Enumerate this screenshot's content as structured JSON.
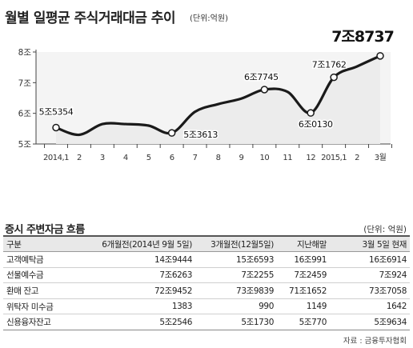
{
  "chart": {
    "title": "월별 일평균 주식거래대금 추이",
    "unit": "(단위:억원)"
  },
  "chart_data": {
    "type": "area",
    "title": "월별 일평균 주식거래대금 추이",
    "unit": "(단위:억원)",
    "x": [
      "2014,1",
      "2",
      "3",
      "4",
      "5",
      "6",
      "7",
      "8",
      "9",
      "10",
      "11",
      "12",
      "2015,1",
      "2",
      "3월"
    ],
    "values": [
      55354,
      53000,
      56500,
      56500,
      56000,
      53613,
      60500,
      63000,
      64800,
      67745,
      67000,
      60130,
      71762,
      75300,
      78737
    ],
    "yticks": [
      "5조",
      "6조",
      "7조",
      "8조"
    ],
    "ylim": [
      50000,
      80000
    ],
    "grid": false,
    "line_color": "#1a1a1a",
    "area_color": "#ececec",
    "annotations": [
      {
        "index": 0,
        "text": "5조5354"
      },
      {
        "index": 5,
        "text": "5조3613"
      },
      {
        "index": 9,
        "text": "6조7745"
      },
      {
        "index": 11,
        "text": "6조0130"
      },
      {
        "index": 12,
        "text": "7조1762"
      },
      {
        "index": 14,
        "text": "7조8737"
      }
    ]
  },
  "table": {
    "title": "증시 주변자금 흐름",
    "unit": "(단위: 억원)",
    "headers": [
      "구분",
      "6개월전(2014년 9월 5일)",
      "3개월전(12월5일)",
      "지난해말",
      "3월 5일 현재"
    ],
    "rows": [
      [
        "고객예탁금",
        "14조9444",
        "15조6593",
        "16조991",
        "16조6914"
      ],
      [
        "선물예수금",
        "7조6263",
        "7조2255",
        "7조2459",
        "7조924"
      ],
      [
        "환매 잔고",
        "72조9452",
        "73조9839",
        "71조1652",
        "73조7058"
      ],
      [
        "위탁자 미수금",
        "1383",
        "990",
        "1149",
        "1642"
      ],
      [
        "신용융자잔고",
        "5조2546",
        "5조1730",
        "5조770",
        "5조9634"
      ]
    ]
  },
  "source": "자료 : 금융투자협회"
}
